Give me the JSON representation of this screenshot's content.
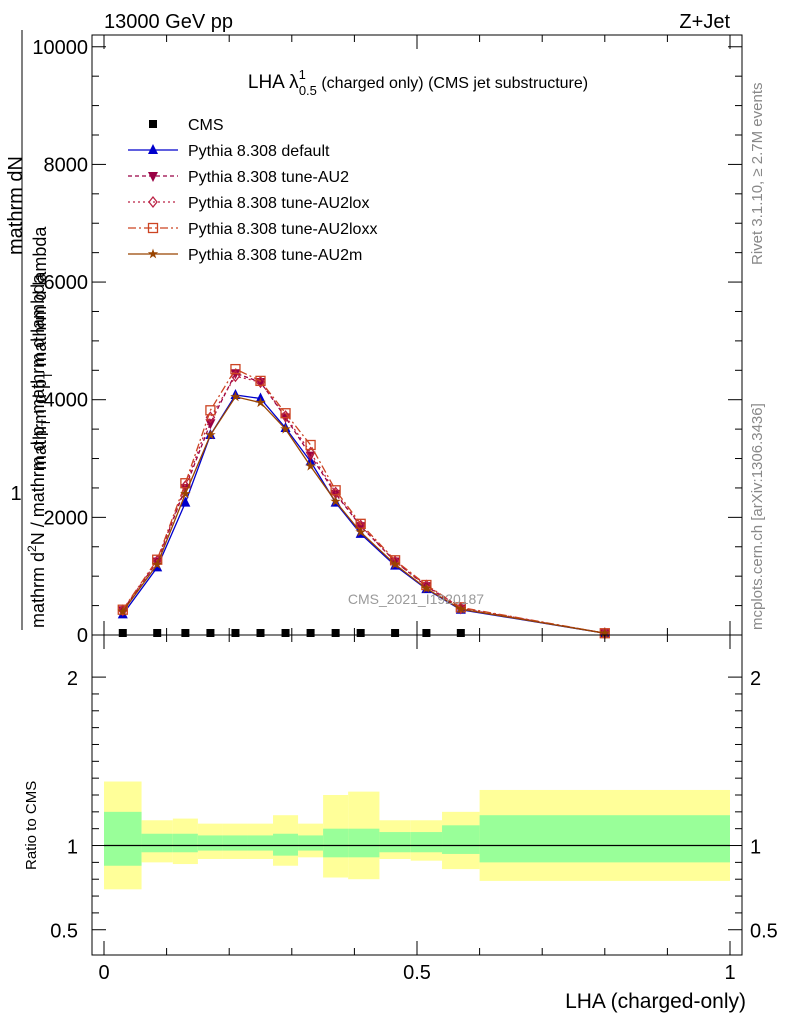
{
  "header": {
    "energy": "13000 GeV pp",
    "process": "Z+Jet"
  },
  "side_labels": {
    "rivet": "Rivet 3.1.10, ≥ 2.7M events",
    "mcplots": "mcplots.cern.ch [arXiv:1306.3436]"
  },
  "watermark": "CMS_2021_I1920187",
  "main_ylabel": {
    "top": "1",
    "num": "mathrm dN",
    "den1": "mathrm d p",
    "den2": "T",
    "den3": " mathrm d lambda",
    "full_num": "mathrm d",
    "full_sub": "2",
    "full_rest": "N / mathrm d p",
    "full_sub2": "T",
    "full_tail": " mathrm d lambda"
  },
  "colors": {
    "cms": "#000000",
    "default": "#0000cc",
    "au2": "#990044",
    "au2lox": "#bb2244",
    "au2loxx": "#cc4422",
    "au2m": "#994400",
    "band_inner": "#99ff99",
    "band_outer": "#ffff99"
  },
  "chart_data": [
    {
      "type": "line",
      "title_main": "LHA λ",
      "title_sup": "1",
      "title_sub": "0.5",
      "title_rest": " (charged only) (CMS jet substructure)",
      "xlim": [
        0,
        1
      ],
      "ylim": [
        0,
        10200
      ],
      "yticks": [
        {
          "v": 0,
          "label": "0"
        },
        {
          "v": 2000,
          "label": "2000"
        },
        {
          "v": 4000,
          "label": "4000"
        },
        {
          "v": 6000,
          "label": "6000"
        },
        {
          "v": 8000,
          "label": "8000"
        },
        {
          "v": 10000,
          "label": "10000"
        }
      ],
      "x": [
        0.03,
        0.085,
        0.13,
        0.17,
        0.21,
        0.25,
        0.29,
        0.33,
        0.37,
        0.41,
        0.465,
        0.515,
        0.57,
        0.8
      ],
      "series": [
        {
          "name": "CMS",
          "key": "cms",
          "values": [
            0,
            0,
            0,
            0,
            0,
            0,
            0,
            0,
            0,
            0,
            0,
            0,
            0,
            null
          ]
        },
        {
          "name": "Pythia 8.308 default",
          "key": "default",
          "values": [
            350,
            1150,
            2250,
            3400,
            4080,
            4020,
            3520,
            2950,
            2250,
            1720,
            1180,
            780,
            430,
            30
          ]
        },
        {
          "name": "Pythia 8.308 tune-AU2",
          "key": "au2",
          "values": [
            420,
            1250,
            2500,
            3600,
            4450,
            4300,
            3700,
            3050,
            2400,
            1850,
            1250,
            830,
            450,
            30
          ]
        },
        {
          "name": "Pythia 8.308 tune-AU2lox",
          "key": "au2lox",
          "values": [
            420,
            1260,
            2530,
            3700,
            4400,
            4300,
            3720,
            3100,
            2420,
            1860,
            1250,
            840,
            460,
            30
          ]
        },
        {
          "name": "Pythia 8.308 tune-AU2loxx",
          "key": "au2loxx",
          "values": [
            430,
            1280,
            2580,
            3820,
            4520,
            4320,
            3770,
            3230,
            2460,
            1890,
            1270,
            850,
            470,
            30
          ]
        },
        {
          "name": "Pythia 8.308 tune-AU2m",
          "key": "au2m",
          "values": [
            400,
            1200,
            2400,
            3400,
            4050,
            3950,
            3500,
            2870,
            2270,
            1750,
            1200,
            790,
            440,
            30
          ]
        }
      ]
    },
    {
      "type": "area",
      "ylabel": "Ratio to CMS",
      "xlabel": "LHA (charged-only)",
      "xlim": [
        0,
        1
      ],
      "ylim": [
        0.35,
        2.25
      ],
      "xticks": [
        {
          "v": 0,
          "label": "0"
        },
        {
          "v": 0.5,
          "label": "0.5"
        },
        {
          "v": 1,
          "label": "1"
        }
      ],
      "yticks": [
        {
          "v": 0.5,
          "label": "0.5"
        },
        {
          "v": 1,
          "label": "1"
        },
        {
          "v": 2,
          "label": "2"
        }
      ],
      "bin_edges": [
        0,
        0.06,
        0.11,
        0.15,
        0.19,
        0.23,
        0.27,
        0.31,
        0.35,
        0.39,
        0.44,
        0.49,
        0.54,
        0.6,
        1.0
      ],
      "inner_lo": [
        0.88,
        0.96,
        0.96,
        0.97,
        0.97,
        0.97,
        0.94,
        0.97,
        0.93,
        0.93,
        0.96,
        0.96,
        0.95,
        0.9
      ],
      "inner_hi": [
        1.2,
        1.07,
        1.07,
        1.06,
        1.06,
        1.06,
        1.07,
        1.06,
        1.1,
        1.1,
        1.08,
        1.08,
        1.12,
        1.18
      ],
      "outer_lo": [
        0.74,
        0.9,
        0.89,
        0.92,
        0.92,
        0.92,
        0.88,
        0.93,
        0.81,
        0.8,
        0.92,
        0.91,
        0.86,
        0.79
      ],
      "outer_hi": [
        1.38,
        1.15,
        1.16,
        1.13,
        1.13,
        1.13,
        1.18,
        1.13,
        1.3,
        1.32,
        1.15,
        1.15,
        1.2,
        1.33
      ],
      "reference": 1
    }
  ]
}
